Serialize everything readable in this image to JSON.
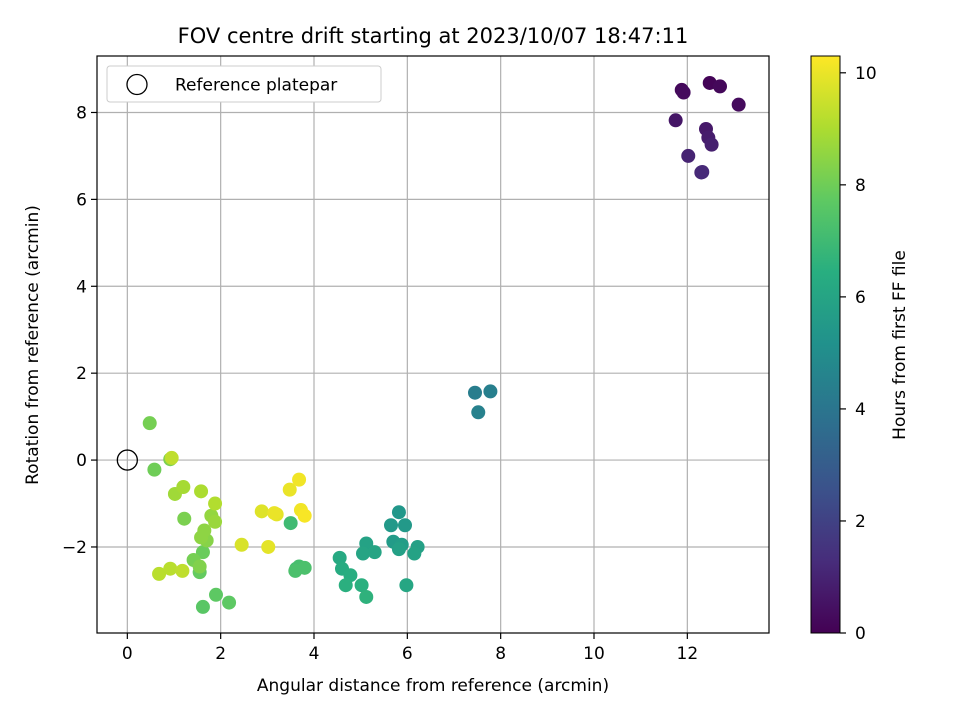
{
  "chart_data": {
    "type": "scatter",
    "title": "FOV centre drift starting at 2023/10/07 18:47:11",
    "xlabel": "Angular distance from reference (arcmin)",
    "ylabel": "Rotation from reference (arcmin)",
    "xlim": [
      -0.65,
      13.75
    ],
    "ylim": [
      -3.98,
      9.3
    ],
    "xticks": [
      0,
      2,
      4,
      6,
      8,
      10,
      12
    ],
    "yticks": [
      -2,
      0,
      2,
      4,
      6,
      8
    ],
    "grid": true,
    "legend": {
      "placement": "upper-left",
      "entries": [
        "Reference platepar"
      ]
    },
    "reference_point": {
      "x": 0,
      "y": 0
    },
    "colorbar": {
      "label": "Hours from first FF file",
      "range": [
        0,
        10.3
      ],
      "ticks": [
        0,
        2,
        4,
        6,
        8,
        10
      ],
      "colormap": "viridis"
    },
    "points": [
      {
        "x": 11.88,
        "y": 8.52,
        "c": 0.2
      },
      {
        "x": 11.92,
        "y": 8.46,
        "c": 0.3
      },
      {
        "x": 12.48,
        "y": 8.68,
        "c": 0.1
      },
      {
        "x": 12.7,
        "y": 8.6,
        "c": 0.2
      },
      {
        "x": 13.1,
        "y": 8.18,
        "c": 0.3
      },
      {
        "x": 11.75,
        "y": 7.82,
        "c": 0.6
      },
      {
        "x": 12.4,
        "y": 7.62,
        "c": 0.7
      },
      {
        "x": 12.45,
        "y": 7.42,
        "c": 0.8
      },
      {
        "x": 12.52,
        "y": 7.26,
        "c": 0.9
      },
      {
        "x": 12.02,
        "y": 7.0,
        "c": 1.0
      },
      {
        "x": 12.3,
        "y": 6.62,
        "c": 1.1
      },
      {
        "x": 12.32,
        "y": 6.63,
        "c": 1.2
      },
      {
        "x": 7.45,
        "y": 1.55,
        "c": 4.3
      },
      {
        "x": 7.78,
        "y": 1.58,
        "c": 4.4
      },
      {
        "x": 7.52,
        "y": 1.1,
        "c": 4.5
      },
      {
        "x": 5.82,
        "y": -1.2,
        "c": 5.4
      },
      {
        "x": 5.65,
        "y": -1.5,
        "c": 5.5
      },
      {
        "x": 5.95,
        "y": -1.5,
        "c": 5.5
      },
      {
        "x": 5.7,
        "y": -1.88,
        "c": 5.6
      },
      {
        "x": 5.88,
        "y": -1.95,
        "c": 5.7
      },
      {
        "x": 5.82,
        "y": -2.05,
        "c": 5.8
      },
      {
        "x": 6.22,
        "y": -2.0,
        "c": 5.8
      },
      {
        "x": 6.15,
        "y": -2.15,
        "c": 5.9
      },
      {
        "x": 5.12,
        "y": -1.92,
        "c": 5.9
      },
      {
        "x": 5.3,
        "y": -2.12,
        "c": 6.0
      },
      {
        "x": 5.05,
        "y": -2.15,
        "c": 6.0
      },
      {
        "x": 5.98,
        "y": -2.88,
        "c": 6.1
      },
      {
        "x": 4.55,
        "y": -2.25,
        "c": 6.2
      },
      {
        "x": 4.6,
        "y": -2.5,
        "c": 6.3
      },
      {
        "x": 4.78,
        "y": -2.65,
        "c": 6.4
      },
      {
        "x": 4.68,
        "y": -2.88,
        "c": 6.5
      },
      {
        "x": 5.02,
        "y": -2.88,
        "c": 6.5
      },
      {
        "x": 5.12,
        "y": -3.15,
        "c": 6.6
      },
      {
        "x": 3.5,
        "y": -1.45,
        "c": 7.0
      },
      {
        "x": 3.62,
        "y": -2.5,
        "c": 7.1
      },
      {
        "x": 3.68,
        "y": -2.45,
        "c": 7.2
      },
      {
        "x": 3.8,
        "y": -2.48,
        "c": 7.3
      },
      {
        "x": 3.6,
        "y": -2.55,
        "c": 7.3
      },
      {
        "x": 1.62,
        "y": -3.38,
        "c": 7.6
      },
      {
        "x": 1.9,
        "y": -3.1,
        "c": 7.7
      },
      {
        "x": 2.18,
        "y": -3.28,
        "c": 7.7
      },
      {
        "x": 1.55,
        "y": -2.58,
        "c": 7.8
      },
      {
        "x": 1.62,
        "y": -2.12,
        "c": 7.9
      },
      {
        "x": 0.58,
        "y": -0.22,
        "c": 8.0
      },
      {
        "x": 0.48,
        "y": 0.85,
        "c": 8.1
      },
      {
        "x": 1.42,
        "y": -2.3,
        "c": 8.1
      },
      {
        "x": 1.22,
        "y": -1.35,
        "c": 8.2
      },
      {
        "x": 0.92,
        "y": 0.02,
        "c": 8.2
      },
      {
        "x": 1.55,
        "y": -2.45,
        "c": 8.3
      },
      {
        "x": 1.7,
        "y": -1.85,
        "c": 8.4
      },
      {
        "x": 1.58,
        "y": -1.78,
        "c": 8.5
      },
      {
        "x": 1.65,
        "y": -1.62,
        "c": 8.5
      },
      {
        "x": 1.8,
        "y": -1.28,
        "c": 8.6
      },
      {
        "x": 1.88,
        "y": -1.42,
        "c": 8.7
      },
      {
        "x": 1.02,
        "y": -0.78,
        "c": 8.8
      },
      {
        "x": 1.2,
        "y": -0.62,
        "c": 8.9
      },
      {
        "x": 1.58,
        "y": -0.72,
        "c": 9.0
      },
      {
        "x": 1.88,
        "y": -1.0,
        "c": 9.1
      },
      {
        "x": 0.68,
        "y": -2.62,
        "c": 9.2
      },
      {
        "x": 0.92,
        "y": -2.5,
        "c": 9.2
      },
      {
        "x": 1.18,
        "y": -2.55,
        "c": 9.3
      },
      {
        "x": 0.95,
        "y": 0.05,
        "c": 9.3
      },
      {
        "x": 2.45,
        "y": -1.95,
        "c": 9.7
      },
      {
        "x": 2.88,
        "y": -1.18,
        "c": 9.8
      },
      {
        "x": 3.2,
        "y": -1.25,
        "c": 9.9
      },
      {
        "x": 3.02,
        "y": -2.0,
        "c": 9.9
      },
      {
        "x": 3.15,
        "y": -1.22,
        "c": 10.0
      },
      {
        "x": 3.48,
        "y": -0.68,
        "c": 10.0
      },
      {
        "x": 3.68,
        "y": -0.45,
        "c": 10.1
      },
      {
        "x": 3.72,
        "y": -1.15,
        "c": 10.1
      },
      {
        "x": 3.8,
        "y": -1.28,
        "c": 10.2
      }
    ]
  }
}
